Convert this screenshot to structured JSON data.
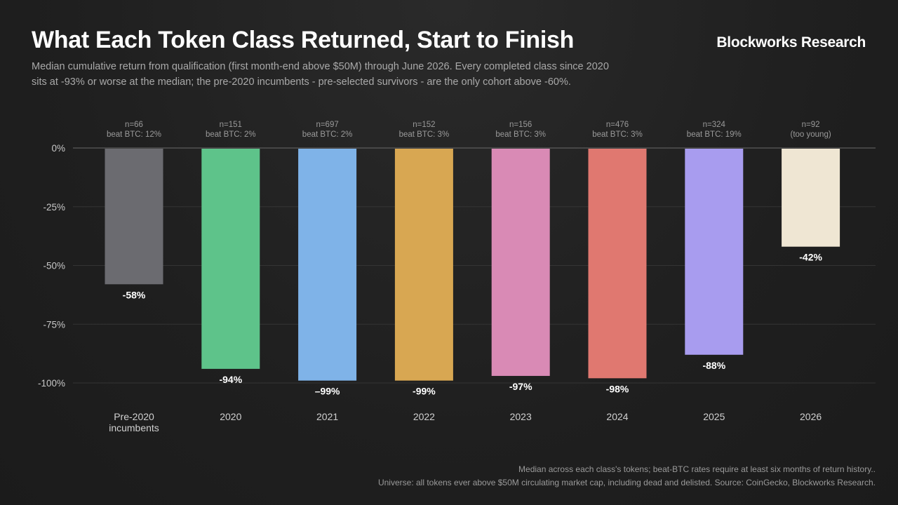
{
  "header": {
    "title": "What Each Token Class Returned, Start to Finish",
    "brand": "Blockworks Research",
    "subtitle_line1": "Median cumulative return from qualification (first month-end above $50M) through June 2026. Every completed class since 2020",
    "subtitle_line2": "sits at -93% or worse at the median; the pre-2020 incumbents - pre-selected survivors - are the only cohort above -60%."
  },
  "chart_data": {
    "type": "bar",
    "ylim": [
      -100,
      0
    ],
    "yticks": [
      0,
      -25,
      -50,
      -75,
      -100
    ],
    "ytick_labels": [
      "0%",
      "-25%",
      "-50%",
      "-75%",
      "-100%"
    ],
    "grid": true,
    "categories": [
      [
        "Pre-2020",
        "incumbents"
      ],
      [
        "2020"
      ],
      [
        "2021"
      ],
      [
        "2022"
      ],
      [
        "2023"
      ],
      [
        "2024"
      ],
      [
        "2025"
      ],
      [
        "2026"
      ]
    ],
    "values": [
      -58,
      -94,
      -99,
      -99,
      -97,
      -98,
      -88,
      -42
    ],
    "value_labels": [
      "-58%",
      "-94%",
      "–99%",
      "-99%",
      "-97%",
      "-98%",
      "-88%",
      "-42%"
    ],
    "top_labels": [
      [
        "n=66",
        "beat BTC: 12%"
      ],
      [
        "n=151",
        "beat BTC: 2%"
      ],
      [
        "n=697",
        "beat BTC: 2%"
      ],
      [
        "n=152",
        "beat BTC: 3%"
      ],
      [
        "n=156",
        "beat BTC: 3%"
      ],
      [
        "n=476",
        "beat BTC: 3%"
      ],
      [
        "n=324",
        "beat BTC: 19%"
      ],
      [
        "n=92",
        "(too young)"
      ]
    ],
    "colors": [
      "#6b6b70",
      "#5ec38a",
      "#7fb3e8",
      "#d8a752",
      "#d98ab5",
      "#e07870",
      "#a89cef",
      "#efe6d3"
    ]
  },
  "footer": {
    "line1": "Median across each class's tokens; beat-BTC rates require at least six months of return history..",
    "line2": "Universe: all tokens ever above $50M circulating market cap, including dead and delisted. Source: CoinGecko, Blockworks Research."
  }
}
